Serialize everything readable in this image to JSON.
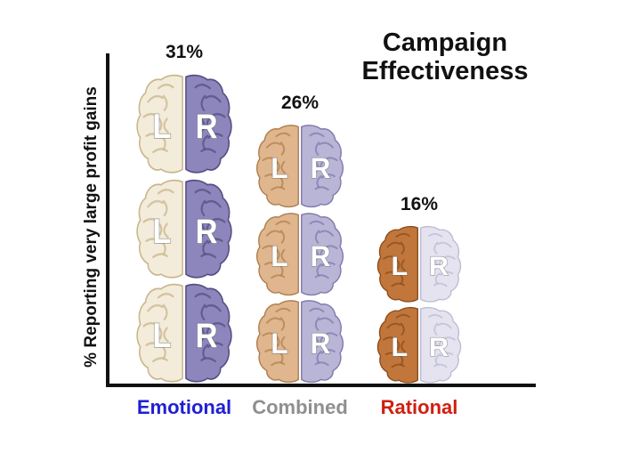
{
  "chart_data": {
    "type": "bar",
    "title": "Campaign Effectiveness",
    "title_lines": [
      "Campaign",
      "Effectiveness"
    ],
    "ylabel": "% Reporting very large profit gains",
    "xlabel": "",
    "categories": [
      "Emotional",
      "Combined",
      "Rational"
    ],
    "values": [
      31,
      26,
      16
    ],
    "value_labels": [
      "31%",
      "26%",
      "16%"
    ],
    "ylim": [
      0,
      35
    ],
    "grid": "off",
    "legend": "none",
    "bar_style": "stacked brain illustrations, each split into left/right hemispheres",
    "hemisphere_letters": {
      "left": "L",
      "right": "R"
    },
    "bars": [
      {
        "category": "Emotional",
        "value": 31,
        "value_label": "31%",
        "label_color": "#1f1fd4",
        "brain_count": 3,
        "left_fill": "#f3ecda",
        "left_stroke": "#c9b68c",
        "right_fill": "#8d86bd",
        "right_stroke": "#554e82"
      },
      {
        "category": "Combined",
        "value": 26,
        "value_label": "26%",
        "label_color": "#8f8f8f",
        "brain_count": 3,
        "left_fill": "#dfb68d",
        "left_stroke": "#b07f4f",
        "right_fill": "#b9b5d6",
        "right_stroke": "#817aae"
      },
      {
        "category": "Rational",
        "value": 16,
        "value_label": "16%",
        "label_color": "#d01f10",
        "brain_count": 2,
        "left_fill": "#c1763b",
        "left_stroke": "#8a4c1c",
        "right_fill": "#e4e3ef",
        "right_stroke": "#bcbcd4"
      }
    ]
  }
}
